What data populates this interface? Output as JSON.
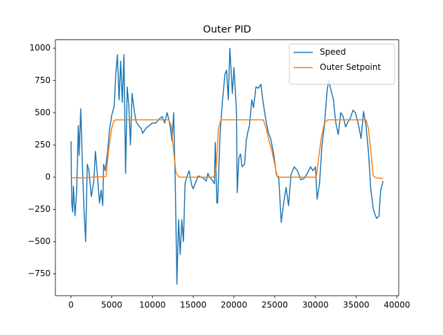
{
  "chart_data": {
    "type": "line",
    "title": "Outer PID",
    "xlim": [
      -1915,
      40215
    ],
    "ylim": [
      -919,
      1065
    ],
    "xticks": [
      0,
      5000,
      10000,
      15000,
      20000,
      25000,
      30000,
      35000,
      40000
    ],
    "yticks": [
      {
        "value": -750,
        "label": "−750"
      },
      {
        "value": -500,
        "label": "−500"
      },
      {
        "value": -250,
        "label": "−250"
      },
      0,
      250,
      500,
      750,
      1000
    ],
    "legend": "upper right",
    "series": [
      {
        "name": "Speed",
        "color": "#1f77b4",
        "x": [
          0,
          100,
          200,
          300,
          500,
          700,
          900,
          1000,
          1200,
          1400,
          1600,
          1800,
          2000,
          2200,
          2500,
          2800,
          3000,
          3200,
          3500,
          3700,
          3900,
          4000,
          4200,
          4500,
          4700,
          5000,
          5300,
          5500,
          5700,
          5900,
          6100,
          6300,
          6500,
          6700,
          6900,
          7100,
          7300,
          7500,
          7800,
          8000,
          8300,
          8600,
          8800,
          9200,
          9600,
          10000,
          10400,
          10800,
          11200,
          11500,
          11800,
          12000,
          12200,
          12400,
          12600,
          12800,
          13000,
          13200,
          13400,
          13600,
          13800,
          14000,
          14200,
          14500,
          14800,
          15000,
          15300,
          15600,
          16000,
          16300,
          16600,
          16800,
          17000,
          17300,
          17600,
          17700,
          17900,
          18000,
          18300,
          18600,
          18900,
          19100,
          19300,
          19500,
          19800,
          20000,
          20300,
          20400,
          20600,
          20800,
          21000,
          21300,
          21500,
          21700,
          21900,
          22200,
          22400,
          22700,
          23000,
          23300,
          23600,
          23900,
          24200,
          24500,
          24900,
          25200,
          25500,
          25800,
          26100,
          26400,
          26700,
          27000,
          27400,
          27800,
          28200,
          28600,
          29000,
          29400,
          29700,
          30000,
          30200,
          30500,
          30800,
          31100,
          31400,
          31600,
          31900,
          32200,
          32500,
          32800,
          33100,
          33400,
          33700,
          34000,
          34300,
          34600,
          34900,
          35200,
          35600,
          35900,
          36200,
          36500,
          36800,
          37100,
          37500,
          37800,
          38000,
          38300
        ],
        "values": [
          280,
          -200,
          -270,
          -70,
          -300,
          -100,
          400,
          170,
          530,
          100,
          -250,
          -500,
          100,
          50,
          -150,
          -30,
          200,
          50,
          -200,
          -100,
          -220,
          100,
          50,
          200,
          350,
          480,
          550,
          800,
          950,
          600,
          900,
          580,
          950,
          30,
          700,
          550,
          250,
          650,
          500,
          430,
          400,
          380,
          340,
          380,
          400,
          420,
          420,
          450,
          470,
          420,
          500,
          450,
          380,
          280,
          500,
          -50,
          -830,
          -330,
          -600,
          -330,
          -500,
          -50,
          0,
          50,
          -60,
          -90,
          -40,
          10,
          0,
          -10,
          -30,
          30,
          0,
          -20,
          -50,
          270,
          -200,
          -200,
          350,
          600,
          800,
          830,
          600,
          1000,
          650,
          850,
          520,
          -120,
          150,
          180,
          80,
          100,
          280,
          350,
          400,
          600,
          540,
          700,
          690,
          720,
          570,
          450,
          350,
          300,
          170,
          20,
          -10,
          -350,
          -200,
          -80,
          -220,
          20,
          80,
          50,
          -20,
          -10,
          30,
          80,
          50,
          80,
          -170,
          -50,
          250,
          400,
          650,
          750,
          680,
          600,
          420,
          330,
          500,
          470,
          390,
          430,
          460,
          520,
          500,
          430,
          300,
          510,
          400,
          200,
          -100,
          -250,
          -320,
          -300,
          -100,
          -30
        ]
      },
      {
        "name": "Outer Setpoint",
        "color": "#ff7f0e",
        "x": [
          0,
          2000,
          2500,
          4000,
          4300,
          4600,
          5000,
          5300,
          5600,
          12000,
          12300,
          12600,
          12900,
          13300,
          17500,
          17800,
          18100,
          18400,
          23600,
          24000,
          24300,
          24600,
          25000,
          25300,
          25600,
          30100,
          30400,
          30700,
          31100,
          31500,
          36200,
          36500,
          36800,
          37100,
          37400,
          38300
        ],
        "values": [
          -5,
          -5,
          0,
          5,
          5,
          200,
          380,
          440,
          445,
          445,
          400,
          200,
          30,
          0,
          0,
          60,
          380,
          445,
          445,
          370,
          280,
          220,
          100,
          10,
          0,
          0,
          150,
          300,
          420,
          445,
          445,
          380,
          200,
          10,
          -5,
          -10
        ]
      }
    ]
  }
}
